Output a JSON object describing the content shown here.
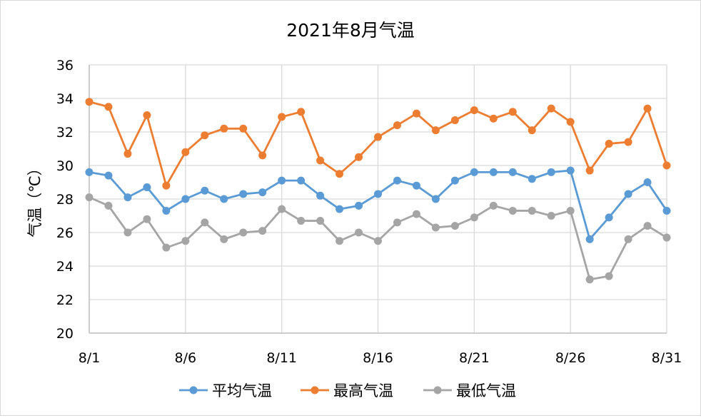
{
  "chart_data": {
    "type": "line",
    "title": "2021年8月气温",
    "xlabel": "",
    "ylabel": "气温（℃）",
    "ylim": [
      20,
      36
    ],
    "yticks": [
      "20",
      "22",
      "24",
      "26",
      "28",
      "30",
      "32",
      "34",
      "36"
    ],
    "xticks": [
      "8/1",
      "8/6",
      "8/11",
      "8/16",
      "8/21",
      "8/26",
      "8/31"
    ],
    "x": [
      "8/1",
      "8/2",
      "8/3",
      "8/4",
      "8/5",
      "8/6",
      "8/7",
      "8/8",
      "8/9",
      "8/10",
      "8/11",
      "8/12",
      "8/13",
      "8/14",
      "8/15",
      "8/16",
      "8/17",
      "8/18",
      "8/19",
      "8/20",
      "8/21",
      "8/22",
      "8/23",
      "8/24",
      "8/25",
      "8/26",
      "8/27",
      "8/28",
      "8/29",
      "8/30",
      "8/31"
    ],
    "grid": true,
    "legend": "bottom",
    "series": [
      {
        "name": "平均气温",
        "color": "#5b9bd5",
        "values": [
          29.6,
          29.4,
          28.1,
          28.7,
          27.3,
          28.0,
          28.5,
          28.0,
          28.3,
          28.4,
          29.1,
          29.1,
          28.2,
          27.4,
          27.6,
          28.3,
          29.1,
          28.8,
          28.0,
          29.1,
          29.6,
          29.6,
          29.6,
          29.2,
          29.6,
          29.7,
          25.6,
          26.9,
          28.3,
          29.0,
          27.3
        ]
      },
      {
        "name": "最高气温",
        "color": "#ed7d31",
        "values": [
          33.8,
          33.5,
          30.7,
          33.0,
          28.8,
          30.8,
          31.8,
          32.2,
          32.2,
          30.6,
          32.9,
          33.2,
          30.3,
          29.5,
          30.5,
          31.7,
          32.4,
          33.1,
          32.1,
          32.7,
          33.3,
          32.8,
          33.2,
          32.1,
          33.4,
          32.6,
          29.7,
          31.3,
          31.4,
          33.4,
          30.0
        ]
      },
      {
        "name": "最低气温",
        "color": "#a5a5a5",
        "values": [
          28.1,
          27.6,
          26.0,
          26.8,
          25.1,
          25.5,
          26.6,
          25.6,
          26.0,
          26.1,
          27.4,
          26.7,
          26.7,
          25.5,
          26.0,
          25.5,
          26.6,
          27.1,
          26.3,
          26.4,
          26.9,
          27.6,
          27.3,
          27.3,
          27.0,
          27.3,
          23.2,
          23.4,
          25.6,
          26.4,
          25.7
        ]
      }
    ]
  }
}
